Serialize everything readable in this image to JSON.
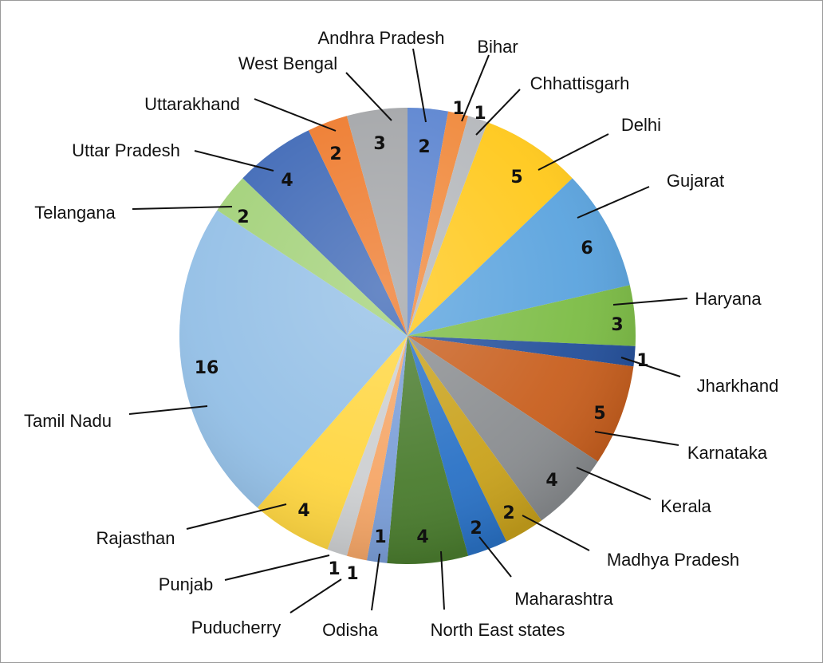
{
  "chart_data": {
    "type": "pie",
    "title": "",
    "start_angle_deg": 90,
    "direction": "clockwise",
    "legend": "none",
    "slices": [
      {
        "label": "Andhra Pradesh",
        "value": 2,
        "color": "#5b84d0"
      },
      {
        "label": "Bihar",
        "value": 1,
        "color": "#f0883a"
      },
      {
        "label": "Chhattisgarh",
        "value": 1,
        "color": "#b4b7bb"
      },
      {
        "label": "Delhi",
        "value": 5,
        "color": "#ffc81a"
      },
      {
        "label": "Gujarat",
        "value": 6,
        "color": "#5aa3de"
      },
      {
        "label": "Haryana",
        "value": 3,
        "color": "#7cbc45"
      },
      {
        "label": "Jharkhand",
        "value": 1,
        "color": "#234f9a"
      },
      {
        "label": "Karnataka",
        "value": 5,
        "color": "#c85f1e"
      },
      {
        "label": "Kerala",
        "value": 4,
        "color": "#8a8d90"
      },
      {
        "label": "Madhya Pradesh",
        "value": 2,
        "color": "#c9a21c"
      },
      {
        "label": "Maharashtra",
        "value": 2,
        "color": "#2a72c6"
      },
      {
        "label": "North East states",
        "value": 4,
        "color": "#4a7c2e"
      },
      {
        "label": "Odisha",
        "value": 1,
        "color": "#7a9ed8"
      },
      {
        "label": "Puducherry",
        "value": 1,
        "color": "#f5a667"
      },
      {
        "label": "Punjab",
        "value": 1,
        "color": "#cdcfd1"
      },
      {
        "label": "Rajasthan",
        "value": 4,
        "color": "#ffd640"
      },
      {
        "label": "Tamil Nadu",
        "value": 16,
        "color": "#93bfe6"
      },
      {
        "label": "Telangana",
        "value": 2,
        "color": "#a2d178"
      },
      {
        "label": "Uttar Pradesh",
        "value": 4,
        "color": "#3e68b6"
      },
      {
        "label": "Uttarakhand",
        "value": 2,
        "color": "#ee7a2c"
      },
      {
        "label": "West Bengal",
        "value": 3,
        "color": "#a3a5a8"
      }
    ]
  }
}
